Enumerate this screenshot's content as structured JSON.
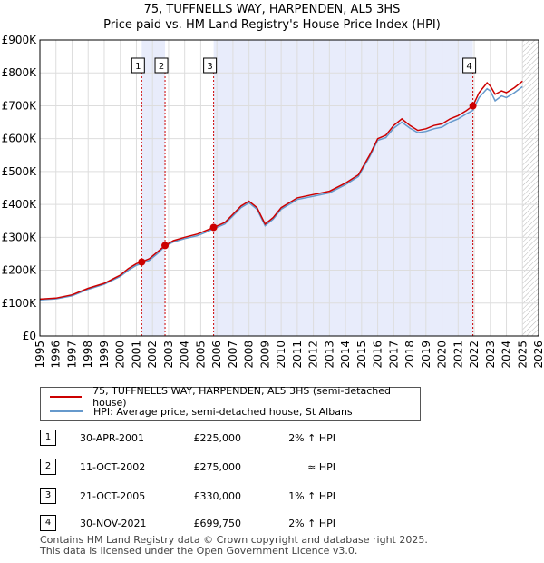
{
  "title_line1": "75, TUFFNELLS WAY, HARPENDEN, AL5 3HS",
  "title_line2": "Price paid vs. HM Land Registry's House Price Index (HPI)",
  "colors": {
    "price_line": "#cc0000",
    "hpi_line": "#6699cc",
    "shade": "#e8ecfb",
    "future_hatch": "#999999",
    "marker_line": "#cc0000"
  },
  "legend": {
    "price_label": "75, TUFFNELLS WAY, HARPENDEN, AL5 3HS (semi-detached house)",
    "hpi_label": "HPI: Average price, semi-detached house, St Albans"
  },
  "sales": [
    {
      "num": "1",
      "date": "30-APR-2001",
      "price": "£225,000",
      "hpi": "2% ↑ HPI",
      "t": 2001.33,
      "value": 225000
    },
    {
      "num": "2",
      "date": "11-OCT-2002",
      "price": "£275,000",
      "hpi": "≈ HPI",
      "t": 2002.78,
      "value": 275000
    },
    {
      "num": "3",
      "date": "21-OCT-2005",
      "price": "£330,000",
      "hpi": "1% ↑ HPI",
      "t": 2005.8,
      "value": 330000
    },
    {
      "num": "4",
      "date": "30-NOV-2021",
      "price": "£699,750",
      "hpi": "2% ↑ HPI",
      "t": 2021.92,
      "value": 699750
    }
  ],
  "footer": {
    "line1": "Contains HM Land Registry data © Crown copyright and database right 2025.",
    "line2": "This data is licensed under the Open Government Licence v3.0."
  },
  "chart_data": {
    "type": "line",
    "title": "75, TUFFNELLS WAY, HARPENDEN, AL5 3HS",
    "subtitle": "Price paid vs. HM Land Registry's House Price Index (HPI)",
    "xlim": [
      1995,
      2026
    ],
    "ylim": [
      0,
      900000
    ],
    "x_ticks": [
      1995,
      1996,
      1997,
      1998,
      1999,
      2000,
      2001,
      2002,
      2003,
      2004,
      2005,
      2006,
      2007,
      2008,
      2009,
      2010,
      2011,
      2012,
      2013,
      2014,
      2015,
      2016,
      2017,
      2018,
      2019,
      2020,
      2021,
      2022,
      2023,
      2024,
      2025,
      2026
    ],
    "x_tick_labels": [
      "1995",
      "1996",
      "1997",
      "1998",
      "1999",
      "2000",
      "2001",
      "2002",
      "2003",
      "2004",
      "2005",
      "2006",
      "2007",
      "2008",
      "2009",
      "2010",
      "2011",
      "2012",
      "2013",
      "2014",
      "2015",
      "2016",
      "2017",
      "2018",
      "2019",
      "2020",
      "2021",
      "2022",
      "2023",
      "2024",
      "2025",
      "2026"
    ],
    "y_ticks": [
      0,
      100000,
      200000,
      300000,
      400000,
      500000,
      600000,
      700000,
      800000,
      900000
    ],
    "y_tick_labels": [
      "£0",
      "£100K",
      "£200K",
      "£300K",
      "£400K",
      "£500K",
      "£600K",
      "£700K",
      "£800K",
      "£900K"
    ],
    "shaded_ranges": [
      [
        2001.33,
        2002.78
      ],
      [
        2005.8,
        2021.92
      ]
    ],
    "future_from": 2025.0,
    "grid": true,
    "legend_position": "below",
    "series": [
      {
        "name": "75, TUFFNELLS WAY, HARPENDEN, AL5 3HS (semi-detached house)",
        "color": "#cc0000",
        "x": [
          1995,
          1996,
          1997,
          1998,
          1999,
          2000,
          2000.5,
          2001,
          2001.33,
          2001.8,
          2002.3,
          2002.78,
          2003.3,
          2004,
          2004.8,
          2005.3,
          2005.8,
          2006.5,
          2007,
          2007.5,
          2008,
          2008.5,
          2009,
          2009.5,
          2010,
          2011,
          2012,
          2013,
          2014,
          2014.8,
          2015.5,
          2016,
          2016.5,
          2017,
          2017.5,
          2018,
          2018.5,
          2019,
          2019.5,
          2020,
          2020.5,
          2021,
          2021.5,
          2021.92,
          2022.3,
          2022.8,
          2023,
          2023.3,
          2023.7,
          2024,
          2024.5,
          2025
        ],
        "y": [
          112000,
          115000,
          125000,
          145000,
          160000,
          185000,
          205000,
          220000,
          225000,
          235000,
          255000,
          275000,
          290000,
          300000,
          310000,
          320000,
          330000,
          345000,
          370000,
          395000,
          410000,
          390000,
          340000,
          360000,
          390000,
          420000,
          430000,
          440000,
          465000,
          490000,
          550000,
          600000,
          610000,
          640000,
          660000,
          640000,
          625000,
          630000,
          640000,
          645000,
          660000,
          670000,
          685000,
          699750,
          740000,
          770000,
          760000,
          735000,
          745000,
          740000,
          755000,
          775000
        ]
      },
      {
        "name": "HPI: Average price, semi-detached house, St Albans",
        "color": "#6699cc",
        "x": [
          1995,
          1996,
          1997,
          1998,
          1999,
          2000,
          2000.5,
          2001,
          2001.33,
          2001.8,
          2002.3,
          2002.78,
          2003.3,
          2004,
          2004.8,
          2005.3,
          2005.8,
          2006.5,
          2007,
          2007.5,
          2008,
          2008.5,
          2009,
          2009.5,
          2010,
          2011,
          2012,
          2013,
          2014,
          2014.8,
          2015.5,
          2016,
          2016.5,
          2017,
          2017.5,
          2018,
          2018.5,
          2019,
          2019.5,
          2020,
          2020.5,
          2021,
          2021.5,
          2021.92,
          2022.3,
          2022.8,
          2023,
          2023.3,
          2023.7,
          2024,
          2024.5,
          2025
        ],
        "y": [
          110000,
          113000,
          122000,
          142000,
          157000,
          181000,
          200000,
          215000,
          220000,
          230000,
          250000,
          273000,
          286000,
          296000,
          305000,
          315000,
          326000,
          340000,
          365000,
          390000,
          405000,
          385000,
          335000,
          355000,
          385000,
          415000,
          425000,
          435000,
          460000,
          485000,
          545000,
          595000,
          603000,
          632000,
          650000,
          632000,
          618000,
          622000,
          630000,
          635000,
          650000,
          660000,
          675000,
          686000,
          725000,
          752000,
          745000,
          715000,
          730000,
          725000,
          740000,
          758000
        ]
      }
    ]
  }
}
